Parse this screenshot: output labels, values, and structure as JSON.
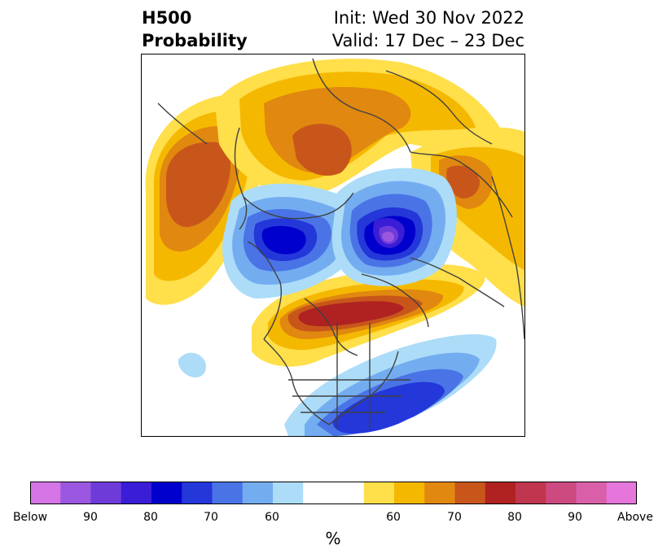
{
  "title": {
    "left_line1": "H500",
    "left_line2": "Probability",
    "right_line1": "Init: Wed 30 Nov 2022",
    "right_line2": "Valid: 17 Dec – 23 Dec"
  },
  "colorbar": {
    "unit": "%",
    "colors": [
      "#d575e6",
      "#9b57e0",
      "#6e3bd9",
      "#3a1dd6",
      "#0000cc",
      "#2437d9",
      "#4a74e6",
      "#73adf0",
      "#acdcf8",
      "#ffffff",
      "#ffdf4a",
      "#f5b800",
      "#e08810",
      "#c8561a",
      "#b02222",
      "#c0364e",
      "#cc4a80",
      "#d960a8",
      "#e576dc"
    ],
    "tick_labels": [
      "Below",
      "90",
      "80",
      "70",
      "60",
      "60",
      "70",
      "80",
      "90",
      "Above"
    ]
  },
  "map": {
    "projection": "north-polar-stereographic",
    "field": "500 hPa height anomaly probability",
    "features": [
      {
        "name": "positive-anomaly-north-pacific",
        "category": "Above",
        "peak_percent": 75
      },
      {
        "name": "positive-anomaly-siberia",
        "category": "Above",
        "peak_percent": 75
      },
      {
        "name": "positive-anomaly-canada-north-atlantic",
        "category": "Above",
        "peak_percent": 80
      },
      {
        "name": "positive-anomaly-europe",
        "category": "Above",
        "peak_percent": 70
      },
      {
        "name": "negative-anomaly-alaska-arctic",
        "category": "Below",
        "peak_percent": 80
      },
      {
        "name": "negative-anomaly-scandinavia",
        "category": "Below",
        "peak_percent": 90
      },
      {
        "name": "negative-anomaly-eastern-us",
        "category": "Below",
        "peak_percent": 80
      },
      {
        "name": "negative-anomaly-hawaii",
        "category": "Below",
        "peak_percent": 60
      }
    ]
  }
}
